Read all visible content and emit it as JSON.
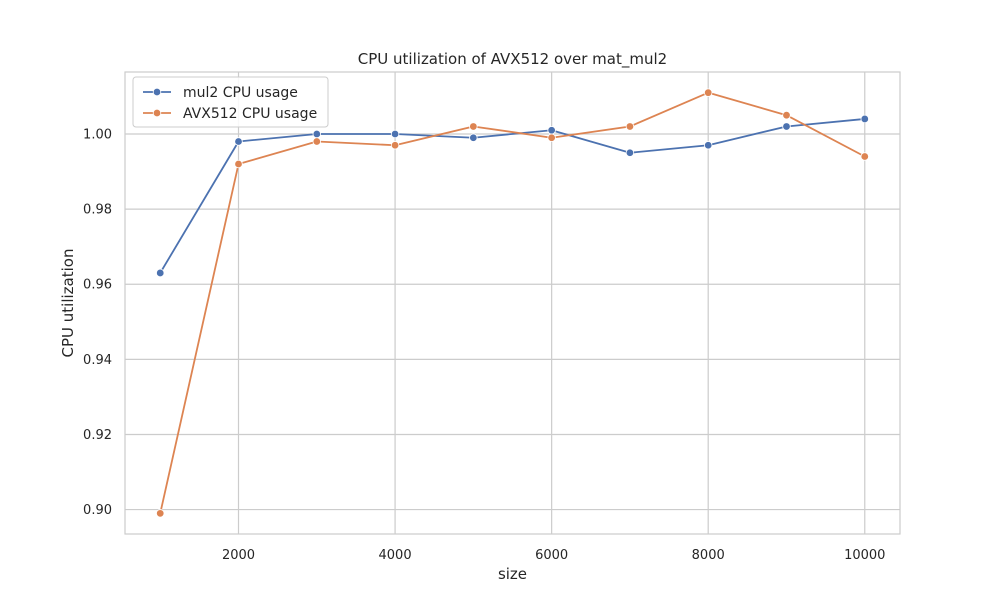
{
  "chart_data": {
    "type": "line",
    "title": "CPU utilization of AVX512 over mat_mul2",
    "xlabel": "size",
    "ylabel": "CPU utilization",
    "xlim": [
      550,
      10450
    ],
    "ylim": [
      0.8935,
      1.0165
    ],
    "x_ticks": [
      2000,
      4000,
      6000,
      8000,
      10000
    ],
    "y_ticks": [
      0.9,
      0.92,
      0.94,
      0.96,
      0.98,
      1.0
    ],
    "y_tick_labels": [
      "0.90",
      "0.92",
      "0.94",
      "0.96",
      "0.98",
      "1.00"
    ],
    "x_tick_labels": [
      "2000",
      "4000",
      "6000",
      "8000",
      "10000"
    ],
    "grid": true,
    "legend_position": "top-left",
    "x": [
      1000,
      2000,
      3000,
      4000,
      5000,
      6000,
      7000,
      8000,
      9000,
      10000
    ],
    "series": [
      {
        "name": "mul2 CPU usage",
        "color": "#4c72b0",
        "values": [
          0.963,
          0.998,
          1.0,
          1.0,
          0.999,
          1.001,
          0.995,
          0.997,
          1.002,
          1.004
        ]
      },
      {
        "name": "AVX512 CPU usage",
        "color": "#dd8452",
        "values": [
          0.899,
          0.992,
          0.998,
          0.997,
          1.002,
          0.999,
          1.002,
          1.011,
          1.005,
          0.994
        ]
      }
    ]
  }
}
